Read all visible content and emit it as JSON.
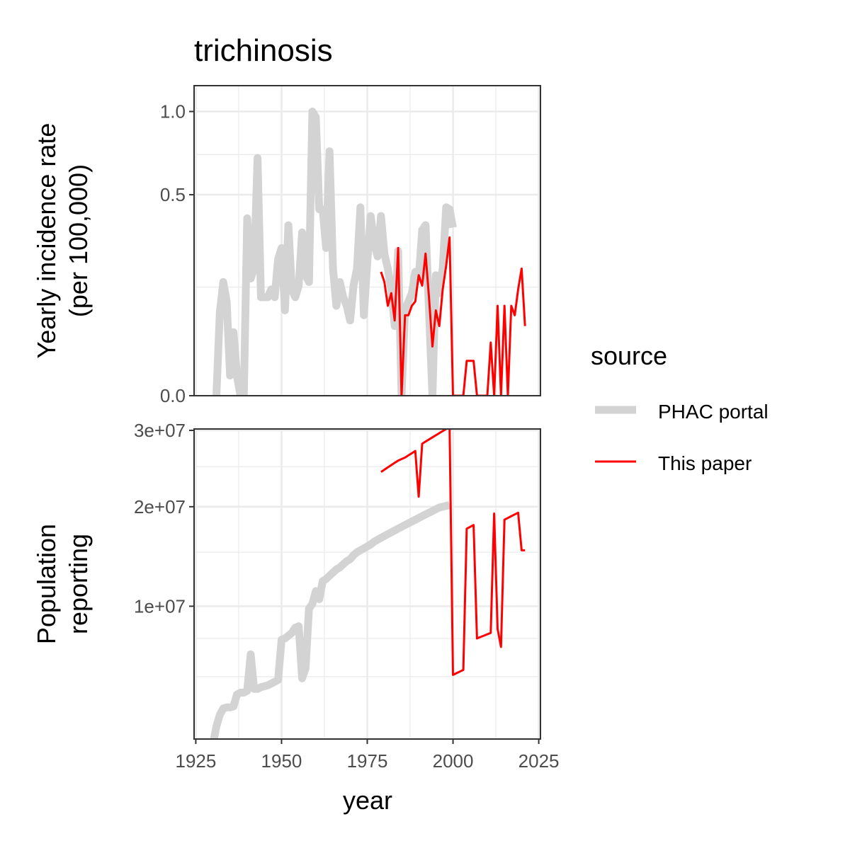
{
  "chart_data": {
    "type": "line",
    "title": "trichinosis",
    "xlabel": "year",
    "x_ticks": [
      "1925",
      "1950",
      "1975",
      "2000",
      "2025"
    ],
    "xlim": [
      1924.5,
      2025.5
    ],
    "legend": {
      "title": "source",
      "placement": "right",
      "entries": [
        {
          "name": "PHAC portal",
          "color": "#d3d3d3",
          "style": "thick"
        },
        {
          "name": "This paper",
          "color": "#ff0000",
          "style": "thin"
        }
      ]
    },
    "panels": [
      {
        "ylabel_lines": [
          "Yearly incidence rate",
          "(per 100,000)"
        ],
        "y_scale": "sqrt",
        "ylim": [
          0,
          1.19
        ],
        "y_ticks": [
          {
            "value": 0,
            "label": "0.0"
          },
          {
            "value": 0.5,
            "label": "0.5"
          },
          {
            "value": 1.0,
            "label": "1.0"
          }
        ],
        "y_minor": [
          0.146,
          0.72
        ],
        "series": [
          {
            "name": "PHAC portal",
            "color": "#d3d3d3",
            "x": [
              1931,
              1932,
              1933,
              1934,
              1935,
              1936,
              1937,
              1938,
              1939,
              1940,
              1941,
              1942,
              1943,
              1944,
              1945,
              1946,
              1947,
              1948,
              1949,
              1950,
              1951,
              1952,
              1953,
              1954,
              1955,
              1956,
              1957,
              1958,
              1959,
              1960,
              1961,
              1962,
              1963,
              1964,
              1965,
              1966,
              1967,
              1968,
              1969,
              1970,
              1971,
              1972,
              1973,
              1974,
              1975,
              1976,
              1977,
              1978,
              1979,
              1980,
              1981,
              1982,
              1983,
              1984,
              1985,
              1986,
              1987,
              1988,
              1989,
              1990,
              1991,
              1992,
              1993,
              1994,
              1995,
              1996,
              1997,
              1998,
              1999,
              2000
            ],
            "y": [
              0.0,
              0.085,
              0.16,
              0.11,
              0.005,
              0.05,
              0.005,
              0.0,
              0.0,
              0.39,
              0.17,
              0.2,
              0.7,
              0.12,
              0.12,
              0.12,
              0.14,
              0.12,
              0.23,
              0.27,
              0.09,
              0.36,
              0.14,
              0.12,
              0.15,
              0.33,
              0.18,
              0.16,
              1.0,
              0.96,
              0.43,
              0.43,
              0.27,
              0.74,
              0.2,
              0.1,
              0.16,
              0.12,
              0.1,
              0.07,
              0.15,
              0.2,
              0.44,
              0.08,
              0.22,
              0.4,
              0.29,
              0.24,
              0.4,
              0.25,
              0.2,
              0.14,
              0.06,
              0.26,
              0.0,
              0.09,
              0.11,
              0.13,
              0.19,
              0.17,
              0.34,
              0.36,
              0.09,
              0.0,
              0.18,
              0.13,
              0.2,
              0.44,
              0.43,
              0.35
            ]
          },
          {
            "name": "This paper",
            "color": "#ff0000",
            "x": [
              1979,
              1980,
              1981,
              1982,
              1983,
              1984,
              1985,
              1986,
              1987,
              1988,
              1989,
              1990,
              1991,
              1992,
              1993,
              1994,
              1995,
              1996,
              1997,
              1998,
              1999,
              2000,
              2001,
              2002,
              2003,
              2004,
              2005,
              2006,
              2007,
              2008,
              2009,
              2010,
              2011,
              2012,
              2013,
              2014,
              2015,
              2016,
              2017,
              2018,
              2019,
              2020,
              2021
            ],
            "y": [
              0.19,
              0.16,
              0.1,
              0.13,
              0.07,
              0.27,
              0.0,
              0.08,
              0.08,
              0.1,
              0.11,
              0.18,
              0.15,
              0.25,
              0.12,
              0.03,
              0.09,
              0.06,
              0.14,
              0.21,
              0.31,
              0.0,
              0.0,
              0.0,
              0.0,
              0.015,
              0.015,
              0.015,
              0.0,
              0.0,
              0.0,
              0.0,
              0.035,
              0.0,
              0.1,
              0.0,
              0.1,
              0.0,
              0.1,
              0.08,
              0.14,
              0.2,
              0.06
            ]
          }
        ]
      },
      {
        "ylabel_lines": [
          "Population",
          "reporting"
        ],
        "y_scale": "sqrt",
        "ylim": [
          2000000,
          30200000
        ],
        "y_ticks": [
          {
            "value": 10000000,
            "label": "1e+07"
          },
          {
            "value": 20000000,
            "label": "2e+07"
          },
          {
            "value": 30000000,
            "label": "3e+07"
          }
        ],
        "y_minor": [
          5000000,
          7500000,
          15000000,
          25000000
        ],
        "series": [
          {
            "name": "PHAC portal",
            "color": "#d3d3d3",
            "x": [
              1930,
              1931,
              1932,
              1933,
              1934,
              1935,
              1936,
              1937,
              1938,
              1939,
              1940,
              1941,
              1942,
              1943,
              1944,
              1945,
              1946,
              1947,
              1948,
              1949,
              1950,
              1951,
              1952,
              1953,
              1954,
              1955,
              1956,
              1957,
              1958,
              1959,
              1960,
              1961,
              1962,
              1963,
              1964,
              1965,
              1966,
              1967,
              1968,
              1969,
              1970,
              1971,
              1972,
              1973,
              1974,
              1975,
              1976,
              1977,
              1978,
              1979,
              1980,
              1981,
              1982,
              1983,
              1984,
              1985,
              1986,
              1987,
              1988,
              1989,
              1990,
              1991,
              1992,
              1993,
              1994,
              1995,
              1996,
              1997,
              1998,
              1999
            ],
            "y": [
              1800000,
              2500000,
              3000000,
              3300000,
              3350000,
              3350000,
              3400000,
              4000000,
              4100000,
              4100000,
              4200000,
              6400000,
              4300000,
              4300000,
              4400000,
              4450000,
              4500000,
              4600000,
              4700000,
              4800000,
              7400000,
              7500000,
              7700000,
              7900000,
              8300000,
              8400000,
              4900000,
              5500000,
              9800000,
              10200000,
              11300000,
              10600000,
              12200000,
              12400000,
              12700000,
              13000000,
              13300000,
              13500000,
              13800000,
              14100000,
              14300000,
              14700000,
              15000000,
              15200000,
              15400000,
              15600000,
              15800000,
              16100000,
              16300000,
              16500000,
              16700000,
              16900000,
              17100000,
              17300000,
              17500000,
              17700000,
              17900000,
              18100000,
              18300000,
              18500000,
              18700000,
              18900000,
              19100000,
              19300000,
              19500000,
              19700000,
              19900000,
              20000000,
              20100000,
              20200000
            ]
          },
          {
            "name": "This paper",
            "color": "#ff0000",
            "x": [
              1979,
              1980,
              1981,
              1982,
              1983,
              1984,
              1985,
              1986,
              1987,
              1988,
              1989,
              1990,
              1991,
              1992,
              1993,
              1994,
              1995,
              1996,
              1997,
              1998,
              1999,
              2000,
              2001,
              2002,
              2003,
              2004,
              2005,
              2006,
              2007,
              2008,
              2009,
              2010,
              2011,
              2012,
              2013,
              2014,
              2015,
              2016,
              2017,
              2018,
              2019,
              2020,
              2021
            ],
            "y": [
              24300000,
              24600000,
              24900000,
              25200000,
              25500000,
              25800000,
              26000000,
              26200000,
              26500000,
              26800000,
              27100000,
              21200000,
              28100000,
              28400000,
              28700000,
              29000000,
              29300000,
              29600000,
              29900000,
              30200000,
              30500000,
              5100000,
              5200000,
              5300000,
              5400000,
              17500000,
              17700000,
              17900000,
              7500000,
              7600000,
              7700000,
              7800000,
              7900000,
              19200000,
              8200000,
              6900000,
              18500000,
              18700000,
              18900000,
              19100000,
              19300000,
              15200000,
              15200000
            ]
          }
        ]
      }
    ]
  }
}
